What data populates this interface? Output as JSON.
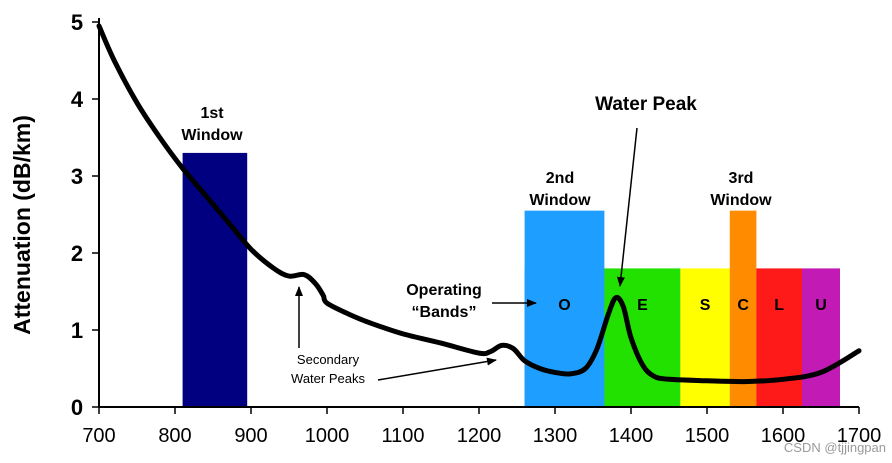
{
  "chart_data": {
    "type": "line",
    "title": "",
    "xlabel": "",
    "ylabel": "Attenuation (dB/km)",
    "xlim": [
      700,
      1700
    ],
    "ylim": [
      0,
      5
    ],
    "x_ticks": [
      700,
      800,
      900,
      1000,
      1100,
      1200,
      1300,
      1400,
      1500,
      1600,
      1700
    ],
    "y_ticks": [
      0,
      1,
      2,
      3,
      4,
      5
    ],
    "grid": false,
    "series": [
      {
        "name": "Attenuation",
        "color": "#000000",
        "x": [
          700,
          720,
          750,
          780,
          810,
          840,
          870,
          900,
          930,
          950,
          970,
          985,
          995,
          1000,
          1030,
          1060,
          1100,
          1150,
          1200,
          1215,
          1230,
          1245,
          1260,
          1280,
          1300,
          1320,
          1340,
          1355,
          1370,
          1380,
          1390,
          1400,
          1415,
          1430,
          1450,
          1500,
          1550,
          1600,
          1650,
          1700
        ],
        "values": [
          4.95,
          4.5,
          3.95,
          3.5,
          3.1,
          2.75,
          2.4,
          2.05,
          1.8,
          1.7,
          1.72,
          1.6,
          1.45,
          1.35,
          1.2,
          1.08,
          0.95,
          0.83,
          0.7,
          0.72,
          0.8,
          0.76,
          0.6,
          0.5,
          0.45,
          0.43,
          0.5,
          0.75,
          1.2,
          1.42,
          1.3,
          0.9,
          0.55,
          0.4,
          0.36,
          0.34,
          0.33,
          0.36,
          0.45,
          0.73
        ]
      }
    ],
    "windows": [
      {
        "name": "1st Window",
        "x0": 810,
        "x1": 895,
        "height": 3.3,
        "color": "#000080"
      },
      {
        "name": "2nd Window",
        "x0": 1260,
        "x1": 1365,
        "height": 2.55,
        "color": "#1e9fff"
      },
      {
        "name": "3rd Window",
        "x0": 1530,
        "x1": 1565,
        "height": 2.55,
        "color": "#ff8c00"
      }
    ],
    "bands": [
      {
        "label": "O",
        "x0": 1260,
        "x1": 1365,
        "height": 1.8,
        "color": "#1e9fff"
      },
      {
        "label": "E",
        "x0": 1365,
        "x1": 1465,
        "height": 1.8,
        "color": "#22e000"
      },
      {
        "label": "S",
        "x0": 1465,
        "x1": 1530,
        "height": 1.8,
        "color": "#ffff00"
      },
      {
        "label": "C",
        "x0": 1530,
        "x1": 1565,
        "height": 1.8,
        "color": "#ff8c00"
      },
      {
        "label": "L",
        "x0": 1565,
        "x1": 1625,
        "height": 1.8,
        "color": "#ff1a1a"
      },
      {
        "label": "U",
        "x0": 1625,
        "x1": 1675,
        "height": 1.8,
        "color": "#c21bb5"
      }
    ],
    "annotations": {
      "first_window": [
        "1st",
        "Window"
      ],
      "second_window": [
        "2nd",
        "Window"
      ],
      "third_window": [
        "3rd",
        "Window"
      ],
      "water_peak": "Water Peak",
      "operating_bands": [
        "Operating",
        "“Bands”"
      ],
      "secondary_peaks": [
        "Secondary",
        "Water Peaks"
      ]
    }
  },
  "watermark": "CSDN @tjjingpan"
}
